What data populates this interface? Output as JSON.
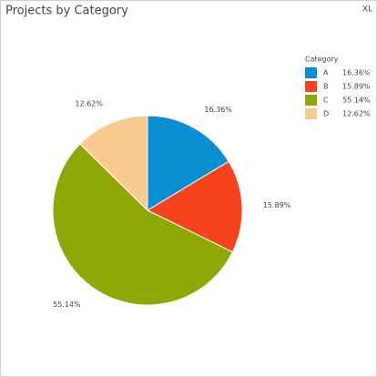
{
  "chart_data": {
    "type": "pie",
    "title": "Projects by Category",
    "badge": "XL",
    "legend_title": "Category",
    "categories": [
      "A",
      "B",
      "C",
      "D"
    ],
    "values": [
      16.36,
      15.89,
      55.14,
      12.62
    ],
    "value_labels": [
      "16.36%",
      "15.89%",
      "55.14%",
      "12.62%"
    ],
    "colors": [
      "#0a8fd2",
      "#f5441b",
      "#8fa806",
      "#f9ca8f"
    ]
  }
}
